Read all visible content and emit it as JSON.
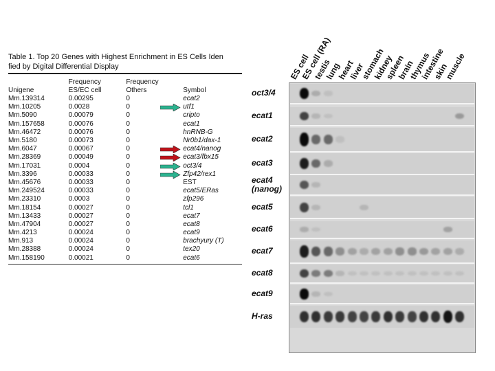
{
  "table": {
    "caption_line1": "Table 1.  Top 20 Genes with Highest Enrichment in ES Cells Iden",
    "caption_line2": "fied by Digital Differential Display",
    "headers": {
      "unigene": "Unigene",
      "freq_es_1": "Frequency",
      "freq_es_2": "ES/EC cell",
      "freq_oth_1": "Frequency",
      "freq_oth_2": "Others",
      "symbol": "Symbol"
    },
    "rows": [
      {
        "unigene": "Mm.139314",
        "freq": "0.00295",
        "others": "0",
        "symbol": "ecat2",
        "arrow": ""
      },
      {
        "unigene": "Mm.10205",
        "freq": "0.0028",
        "others": "0",
        "symbol": "utf1",
        "arrow": "teal"
      },
      {
        "unigene": "Mm.5090",
        "freq": "0.00079",
        "others": "0",
        "symbol": "cripto",
        "arrow": ""
      },
      {
        "unigene": "Mm.157658",
        "freq": "0.00076",
        "others": "0",
        "symbol": "ecat1",
        "arrow": ""
      },
      {
        "unigene": "Mm.46472",
        "freq": "0.00076",
        "others": "0",
        "symbol": "hnRNB-G",
        "arrow": ""
      },
      {
        "unigene": "Mm.5180",
        "freq": "0.00073",
        "others": "0",
        "symbol": "Nr0b1/dax-1",
        "arrow": ""
      },
      {
        "unigene": "Mm.6047",
        "freq": "0.00067",
        "others": "0",
        "symbol": "ecat4/nanog",
        "arrow": "red"
      },
      {
        "unigene": "Mm.28369",
        "freq": "0.00049",
        "others": "0",
        "symbol": "ecat3/fbx15",
        "arrow": "red"
      },
      {
        "unigene": "Mm.17031",
        "freq": "0.0004",
        "others": "0",
        "symbol": "oct3/4",
        "arrow": "teal"
      },
      {
        "unigene": "Mm.3396",
        "freq": "0.00033",
        "others": "0",
        "symbol": "Zfp42/rex1",
        "arrow": "teal"
      },
      {
        "unigene": "Mm.45676",
        "freq": "0.00033",
        "others": "0",
        "symbol": "EST",
        "arrow": ""
      },
      {
        "unigene": "Mm.249524",
        "freq": "0.00033",
        "others": "0",
        "symbol": "ecat5/ERas",
        "arrow": ""
      },
      {
        "unigene": "Mm.23310",
        "freq": "0.0003",
        "others": "0",
        "symbol": "zfp296",
        "arrow": ""
      },
      {
        "unigene": "Mm.18154",
        "freq": "0.00027",
        "others": "0",
        "symbol": "tcl1",
        "arrow": ""
      },
      {
        "unigene": "Mm.13433",
        "freq": "0.00027",
        "others": "0",
        "symbol": "ecat7",
        "arrow": ""
      },
      {
        "unigene": "Mm.47904",
        "freq": "0.00027",
        "others": "0",
        "symbol": "ecat8",
        "arrow": ""
      },
      {
        "unigene": "Mm.4213",
        "freq": "0.00024",
        "others": "0",
        "symbol": "ecat9",
        "arrow": ""
      },
      {
        "unigene": "Mm.913",
        "freq": "0.00024",
        "others": "0",
        "symbol": "brachyury (T)",
        "arrow": ""
      },
      {
        "unigene": "Mm.28388",
        "freq": "0.00024",
        "others": "0",
        "symbol": "tex20",
        "arrow": ""
      },
      {
        "unigene": "Mm.158190",
        "freq": "0.00021",
        "others": "0",
        "symbol": "ecat6",
        "arrow": ""
      }
    ]
  },
  "blot": {
    "lanes": [
      "ES cell",
      "ES cell (RA)",
      "testis",
      "lung",
      "heart",
      "liver",
      "stomach",
      "kidney",
      "spleen",
      "brain",
      "thymus",
      "intestine",
      "skin",
      "muscle"
    ],
    "genes": [
      "oct3/4",
      "ecat1",
      "ecat2",
      "ecat3",
      "ecat4 (nanog)",
      "ecat5",
      "ecat6",
      "ecat7",
      "ecat8",
      "ecat9",
      "H-ras"
    ],
    "band_intensity": [
      [
        1.0,
        0.15,
        0.05,
        0,
        0,
        0,
        0,
        0,
        0,
        0,
        0,
        0,
        0,
        0
      ],
      [
        0.7,
        0.1,
        0.05,
        0,
        0,
        0,
        0,
        0,
        0,
        0,
        0,
        0,
        0,
        0.25
      ],
      [
        1.0,
        0.5,
        0.5,
        0.05,
        0,
        0,
        0,
        0,
        0,
        0,
        0,
        0,
        0,
        0
      ],
      [
        0.9,
        0.5,
        0.15,
        0,
        0,
        0,
        0,
        0,
        0,
        0,
        0,
        0,
        0,
        0
      ],
      [
        0.6,
        0.1,
        0,
        0,
        0,
        0,
        0,
        0,
        0,
        0,
        0,
        0,
        0,
        0
      ],
      [
        0.7,
        0.1,
        0,
        0,
        0,
        0.1,
        0,
        0,
        0,
        0,
        0,
        0,
        0,
        0
      ],
      [
        0.15,
        0.05,
        0,
        0,
        0,
        0,
        0,
        0,
        0,
        0,
        0,
        0,
        0.2,
        0
      ],
      [
        0.9,
        0.6,
        0.5,
        0.3,
        0.2,
        0.15,
        0.2,
        0.2,
        0.3,
        0.3,
        0.25,
        0.2,
        0.2,
        0.15
      ],
      [
        0.7,
        0.4,
        0.4,
        0.1,
        0.05,
        0.05,
        0.05,
        0.05,
        0.05,
        0.05,
        0.05,
        0.05,
        0.05,
        0.05
      ],
      [
        1.0,
        0.1,
        0.05,
        0,
        0,
        0,
        0,
        0,
        0,
        0,
        0,
        0,
        0,
        0
      ],
      [
        0.8,
        0.8,
        0.75,
        0.75,
        0.7,
        0.7,
        0.75,
        0.8,
        0.75,
        0.7,
        0.8,
        0.8,
        0.95,
        0.8
      ]
    ],
    "arrow_colors": {
      "teal": "#2bb38f",
      "red": "#c0121a"
    }
  }
}
